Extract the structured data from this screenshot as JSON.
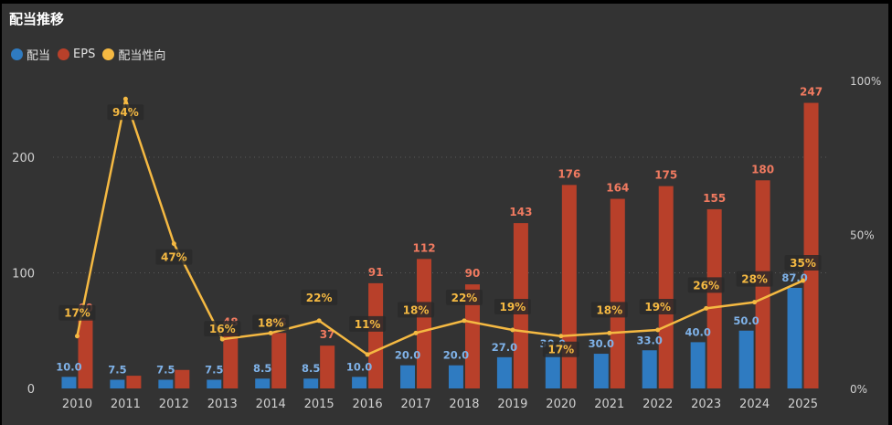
{
  "title": "配当推移",
  "legend": [
    {
      "label": "配当",
      "color": "#2F7BC1"
    },
    {
      "label": "EPS",
      "color": "#B8402A"
    },
    {
      "label": "配当性向",
      "color": "#F5B942"
    }
  ],
  "chart_data": {
    "type": "bar",
    "title": "配当推移",
    "categories": [
      "2010",
      "2011",
      "2012",
      "2013",
      "2014",
      "2015",
      "2016",
      "2017",
      "2018",
      "2019",
      "2020",
      "2021",
      "2022",
      "2023",
      "2024",
      "2025"
    ],
    "series": [
      {
        "name": "配当",
        "type": "bar",
        "axis": "left",
        "color": "#2F7BC1",
        "values": [
          10.0,
          7.5,
          7.5,
          7.5,
          8.5,
          8.5,
          10.0,
          20.0,
          20.0,
          27.0,
          30.0,
          30.0,
          33.0,
          40.0,
          50.0,
          87.0
        ],
        "labels": [
          "10.0",
          "7.5",
          "7.5",
          "7.5",
          "8.5",
          "8.5",
          "10.0",
          "20.0",
          "20.0",
          "27.0",
          "30.0",
          "30.0",
          "33.0",
          "40.0",
          "50.0",
          "87.0"
        ]
      },
      {
        "name": "EPS",
        "type": "bar",
        "axis": "left",
        "color": "#B8402A",
        "values": [
          60,
          11,
          16,
          48,
          48,
          37,
          91,
          112,
          90,
          143,
          176,
          164,
          175,
          155,
          180,
          247
        ],
        "labels": [
          "60",
          "",
          "",
          "48",
          "48",
          "37",
          "91",
          "112",
          "90",
          "143",
          "176",
          "164",
          "175",
          "155",
          "180",
          "247"
        ]
      },
      {
        "name": "配当性向",
        "type": "line",
        "axis": "right",
        "color": "#F5B942",
        "values": [
          17,
          94,
          47,
          16,
          18,
          22,
          11,
          18,
          22,
          19,
          17,
          18,
          19,
          26,
          28,
          35
        ],
        "labels": [
          "17%",
          "94%",
          "47%",
          "16%",
          "18%",
          "22%",
          "11%",
          "18%",
          "22%",
          "19%",
          "17%",
          "18%",
          "19%",
          "26%",
          "28%",
          "35%"
        ]
      }
    ],
    "y_left": {
      "range": [
        0,
        265
      ],
      "ticks": [
        "0",
        "100",
        "200"
      ],
      "tick_values": [
        0,
        100,
        200
      ]
    },
    "y_right": {
      "range": [
        0,
        100
      ],
      "ticks": [
        "0%",
        "50%",
        "100%"
      ],
      "tick_values": [
        0,
        50,
        100
      ]
    },
    "grid": true,
    "legend_position": "top-left"
  }
}
